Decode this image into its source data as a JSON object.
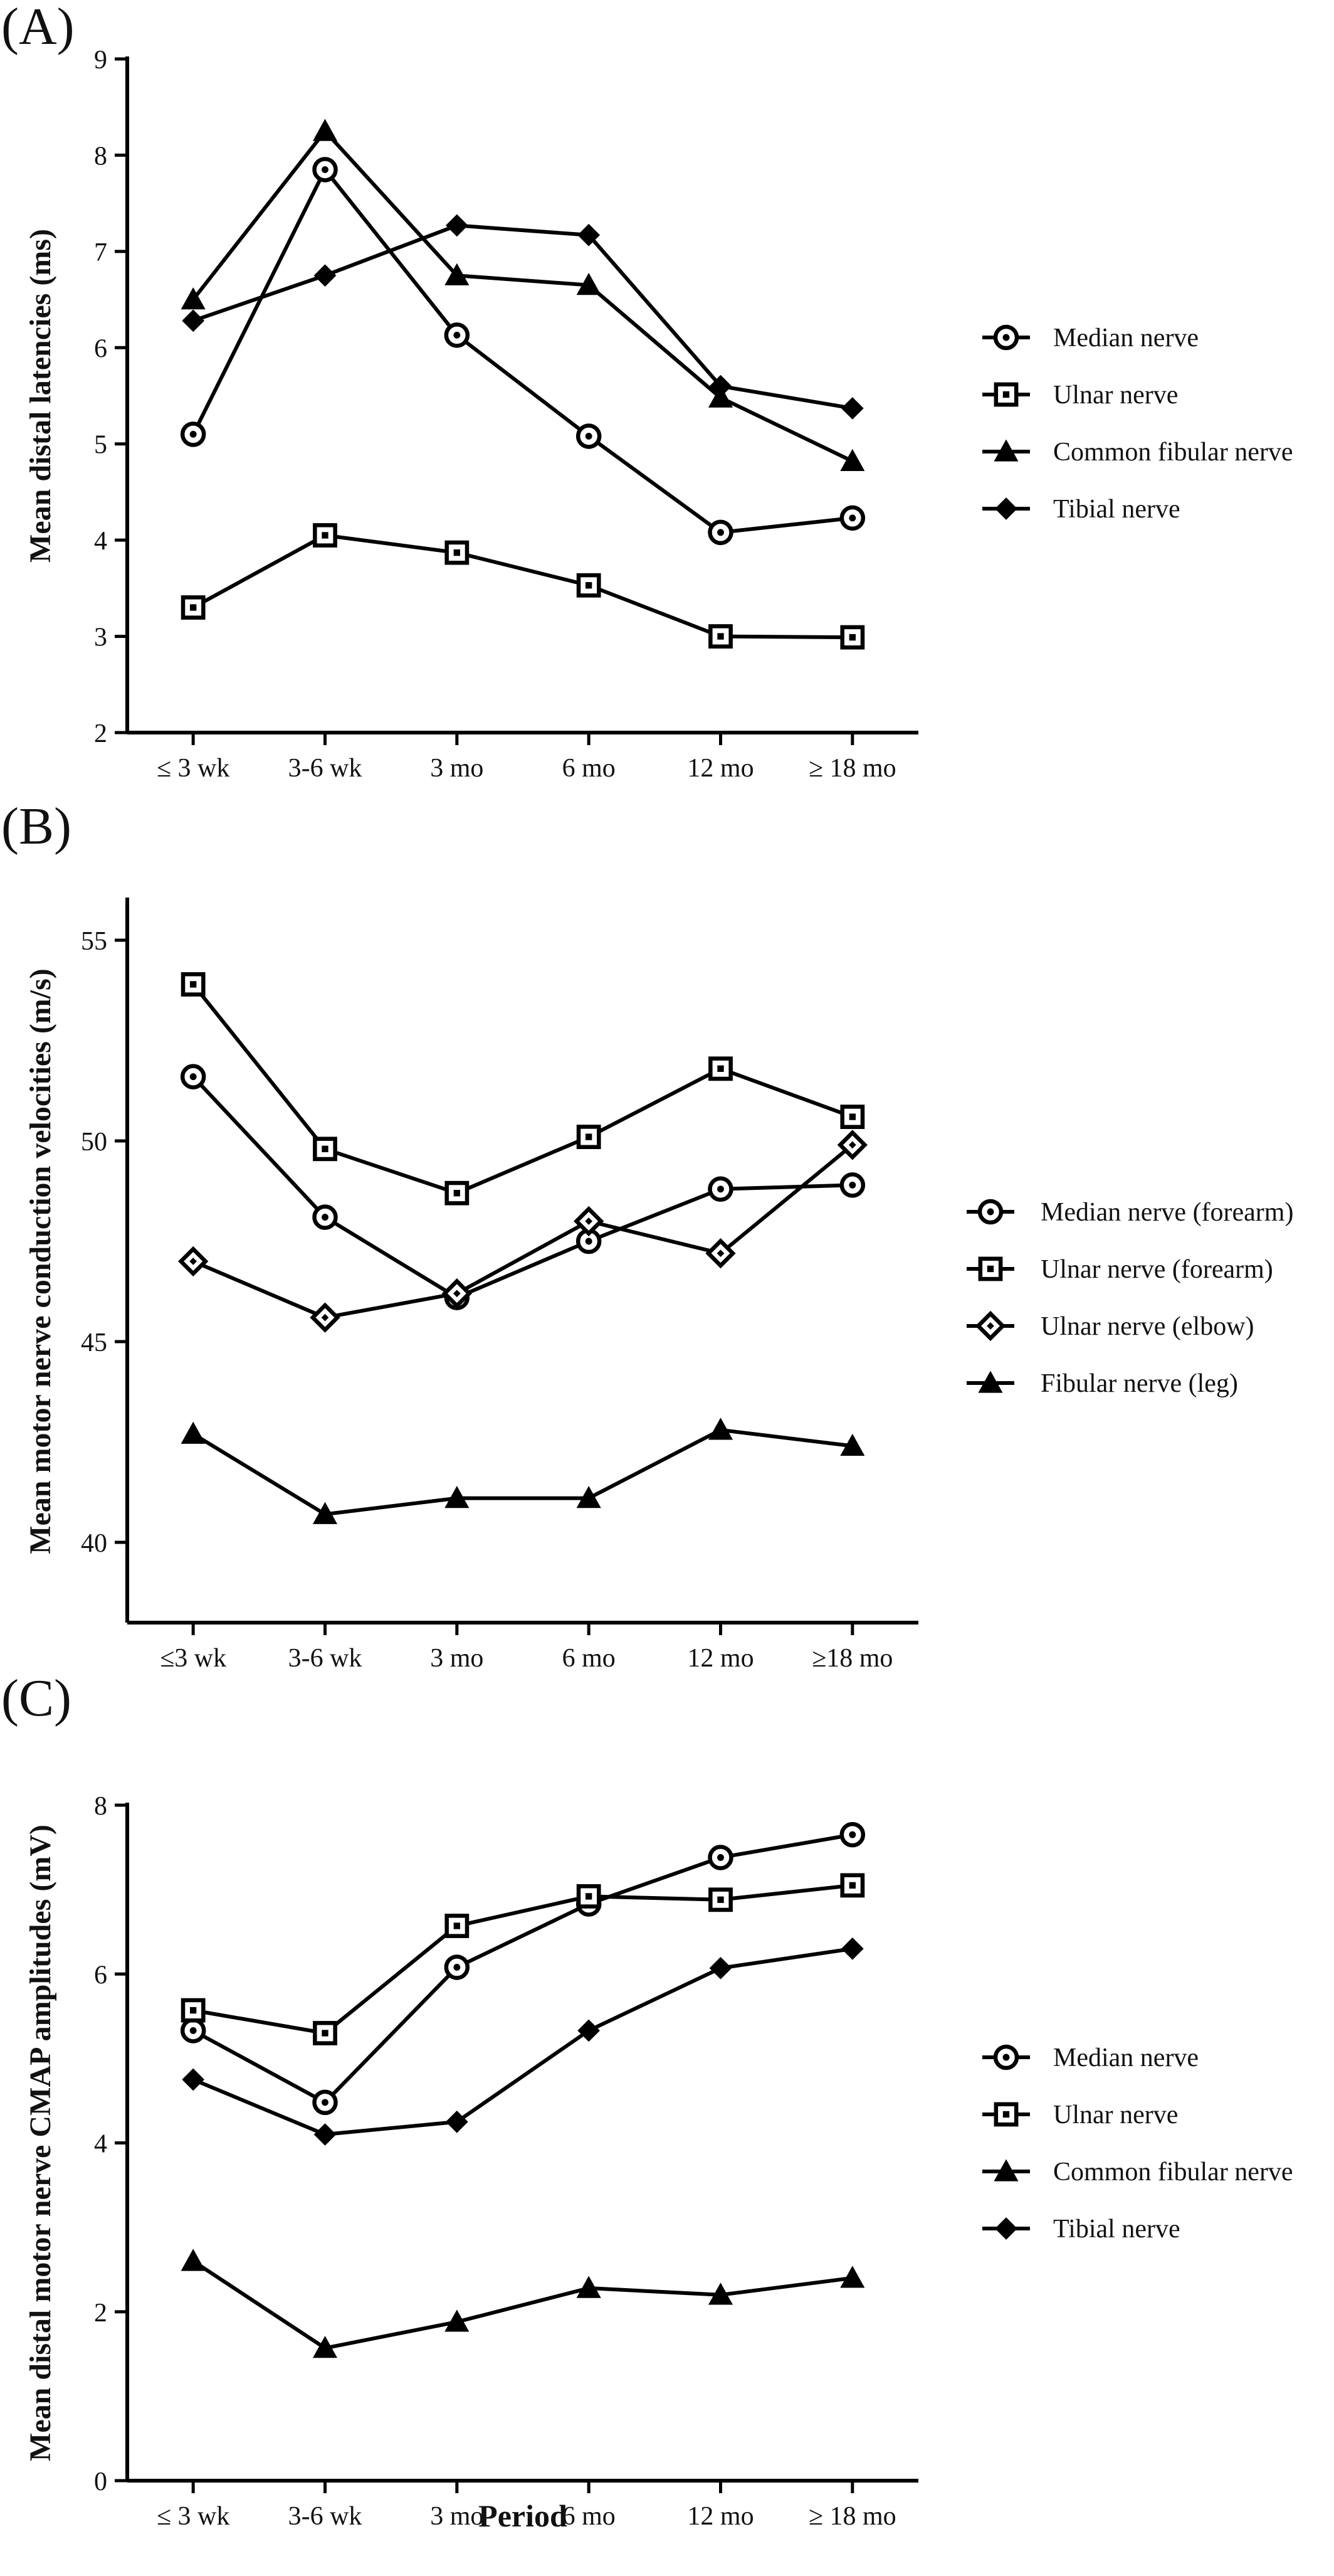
{
  "figure": {
    "xlabel": "Period"
  },
  "chart_data": [
    {
      "type": "line",
      "panel": "(A)",
      "title": "",
      "xlabel": "",
      "ylabel": "Mean distal latencies (ms)",
      "categories": [
        "≤ 3 wk",
        "3-6 wk",
        "3 mo",
        "6 mo",
        "12 mo",
        "≥ 18 mo"
      ],
      "ylim": [
        2,
        9
      ],
      "yticks": [
        2,
        3,
        4,
        5,
        6,
        7,
        8,
        9
      ],
      "grid": false,
      "legend_position": "right",
      "series": [
        {
          "name": "Median nerve",
          "marker": "circle",
          "values": [
            5.1,
            7.85,
            6.13,
            5.08,
            4.08,
            4.23
          ]
        },
        {
          "name": "Ulnar nerve",
          "marker": "square",
          "values": [
            3.3,
            4.05,
            3.87,
            3.53,
            3.0,
            2.99
          ]
        },
        {
          "name": "Common fibular nerve",
          "marker": "triangle",
          "values": [
            6.5,
            8.25,
            6.75,
            6.65,
            5.48,
            4.82
          ]
        },
        {
          "name": "Tibial nerve",
          "marker": "diamond",
          "values": [
            6.28,
            6.75,
            7.27,
            7.17,
            5.6,
            5.37
          ]
        }
      ]
    },
    {
      "type": "line",
      "panel": "(B)",
      "title": "",
      "xlabel": "",
      "ylabel": "Mean motor nerve conduction velocities (m/s)",
      "categories": [
        "≤3 wk",
        "3-6 wk",
        "3 mo",
        "6 mo",
        "12 mo",
        "≥18 mo"
      ],
      "ylim": [
        38,
        56
      ],
      "yticks": [
        40,
        45,
        50,
        55
      ],
      "grid": false,
      "legend_position": "right",
      "series": [
        {
          "name": "Median nerve (forearm)",
          "marker": "circle",
          "values": [
            51.6,
            48.1,
            46.1,
            47.5,
            48.8,
            48.9
          ]
        },
        {
          "name": "Ulnar nerve (forearm)",
          "marker": "square",
          "values": [
            53.9,
            49.8,
            48.7,
            50.1,
            51.8,
            50.6
          ]
        },
        {
          "name": "Ulnar nerve (elbow)",
          "marker": "diamond-open",
          "values": [
            47.0,
            45.6,
            46.2,
            48.0,
            47.2,
            49.9
          ]
        },
        {
          "name": "Fibular nerve (leg)",
          "marker": "triangle",
          "values": [
            42.7,
            40.7,
            41.1,
            41.1,
            42.8,
            42.4
          ]
        }
      ]
    },
    {
      "type": "line",
      "panel": "(C)",
      "title": "",
      "xlabel": "Period",
      "ylabel": "Mean distal motor nerve CMAP amplitudes (mV)",
      "categories": [
        "≤ 3 wk",
        "3-6 wk",
        "3 mo",
        "6 mo",
        "12 mo",
        "≥ 18 mo"
      ],
      "ylim": [
        0,
        8
      ],
      "yticks": [
        0,
        2,
        4,
        6,
        8
      ],
      "grid": false,
      "legend_position": "right",
      "series": [
        {
          "name": "Median nerve",
          "marker": "circle",
          "values": [
            5.33,
            4.48,
            6.08,
            6.83,
            7.38,
            7.65
          ]
        },
        {
          "name": "Ulnar nerve",
          "marker": "square",
          "values": [
            5.57,
            5.3,
            6.57,
            6.92,
            6.88,
            7.05
          ]
        },
        {
          "name": "Common fibular nerve",
          "marker": "triangle",
          "values": [
            2.6,
            1.57,
            1.88,
            2.28,
            2.2,
            2.4
          ]
        },
        {
          "name": "Tibial nerve",
          "marker": "diamond",
          "values": [
            4.75,
            4.1,
            4.25,
            5.33,
            6.07,
            6.3
          ]
        }
      ]
    }
  ]
}
